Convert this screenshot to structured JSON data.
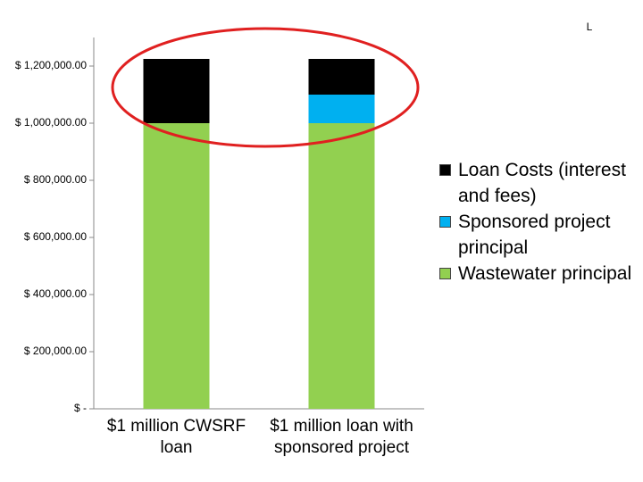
{
  "chart_data": {
    "type": "stacked_bar",
    "annotation": "L",
    "categories": [
      "$1 million CWSRF loan",
      "$1 million loan with sponsored project"
    ],
    "series": [
      {
        "name": "Wastewater principal",
        "color": "#92d050",
        "values": [
          1000000,
          1000000
        ]
      },
      {
        "name": "Sponsored project principal",
        "color": "#00b0f0",
        "values": [
          0,
          100000
        ]
      },
      {
        "name": "Loan Costs (interest and fees)",
        "color": "#000000",
        "values": [
          225000,
          125000
        ]
      }
    ],
    "ylim": [
      0,
      1300000
    ],
    "yticks": [
      {
        "value": 0,
        "label": "$ -"
      },
      {
        "value": 200000,
        "label": "$ 200,000.00"
      },
      {
        "value": 400000,
        "label": "$ 400,000.00"
      },
      {
        "value": 600000,
        "label": "$ 600,000.00"
      },
      {
        "value": 800000,
        "label": "$ 800,000.00"
      },
      {
        "value": 1000000,
        "label": "$ 1,000,000.00"
      },
      {
        "value": 1200000,
        "label": "$ 1,200,000.00"
      }
    ],
    "legend": "right"
  }
}
